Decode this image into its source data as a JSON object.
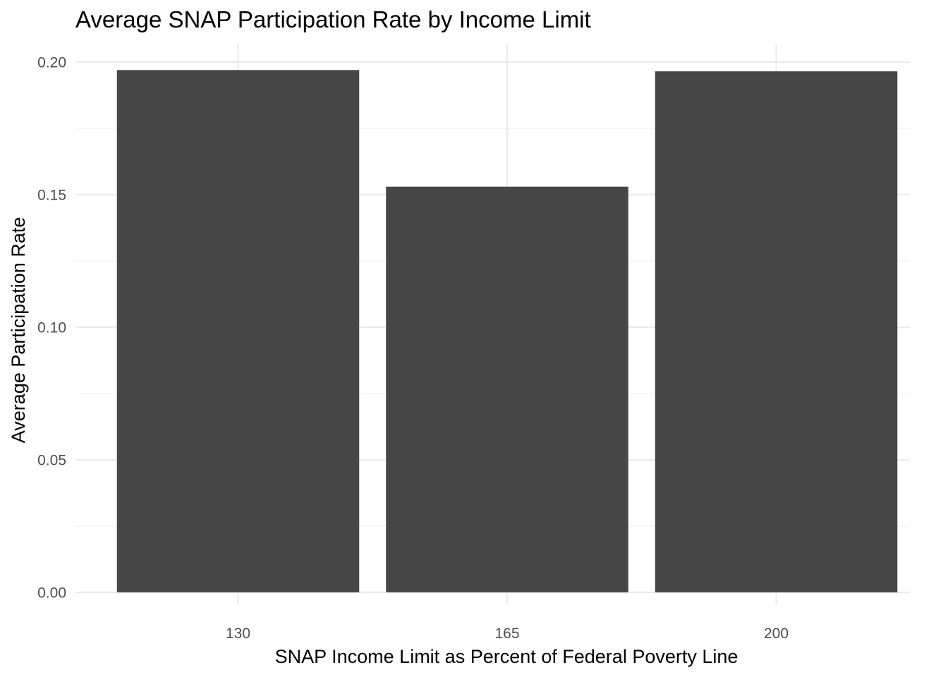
{
  "chart_data": {
    "type": "bar",
    "title": "Average SNAP Participation Rate by Income Limit",
    "xlabel": "SNAP Income Limit as Percent of Federal Poverty Line",
    "ylabel": "Average Participation Rate",
    "categories": [
      "130",
      "165",
      "200"
    ],
    "values": [
      0.197,
      0.153,
      0.1965
    ],
    "ylim": [
      0,
      0.2
    ],
    "yticks": [
      "0.00",
      "0.05",
      "0.10",
      "0.15",
      "0.20"
    ],
    "grid": true,
    "legend": "none",
    "bar_color": "#474747",
    "grid_color": "#ebebeb",
    "background": "#ffffff"
  }
}
